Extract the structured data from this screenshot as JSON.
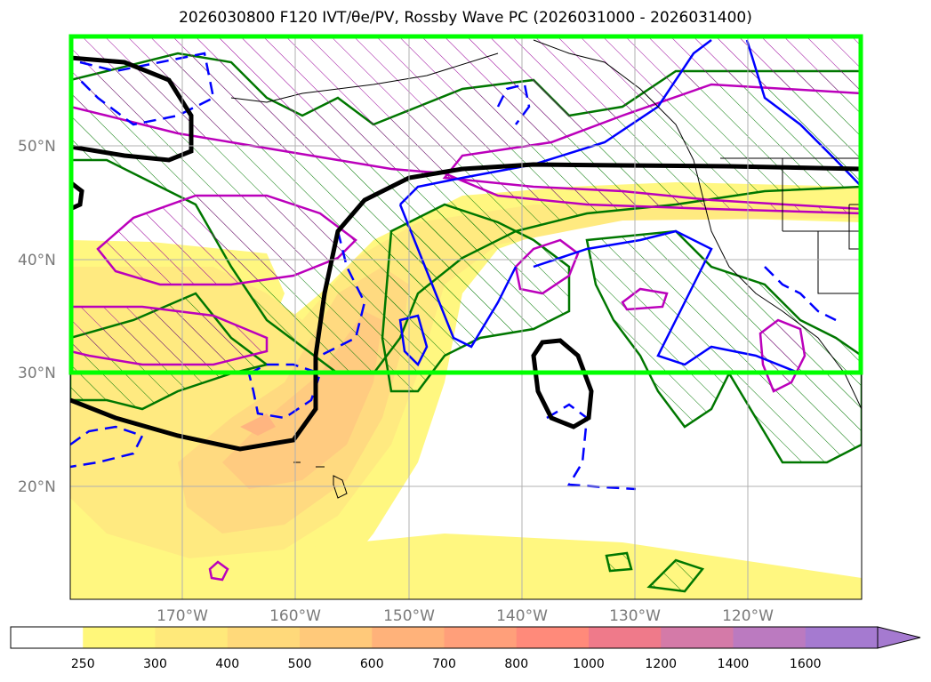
{
  "title": "2026030800 F120 IVT/θe/PV, Rossby Wave PC (2026031000 - 2026031400)",
  "latitude_labels": [
    "50°N",
    "40°N",
    "30°N",
    "20°N"
  ],
  "longitude_labels": [
    "170°W",
    "160°W",
    "150°W",
    "140°W",
    "130°W",
    "120°W"
  ],
  "colorbar": {
    "ticks": [
      "250",
      "300",
      "400",
      "500",
      "600",
      "700",
      "800",
      "1000",
      "1200",
      "1400",
      "1600"
    ],
    "colors": [
      "#ffffff",
      "#fff77a",
      "#ffe97a",
      "#ffd97a",
      "#ffc97a",
      "#ffb27a",
      "#ff9f7a",
      "#ff8a7a",
      "#ef7a8a",
      "#d47aa8",
      "#bb7ac0",
      "#a57ad0"
    ]
  },
  "colors": {
    "frame_highlight": "#00ff00",
    "ivt_shading": "#ffd97a",
    "theta_e_contour": "#007700",
    "pv_contour_solid": "#0000ff",
    "pv_contour_dashed": "#0000ff",
    "rossby_pc_contour": "#000000",
    "magenta_contour": "#bb00bb"
  }
}
